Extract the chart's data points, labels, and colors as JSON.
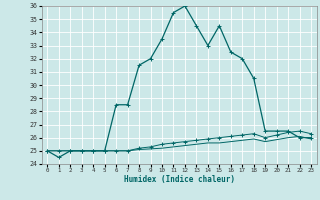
{
  "xlabel": "Humidex (Indice chaleur)",
  "bg_color": "#cce8e8",
  "grid_color": "#b8d8d8",
  "line_color": "#006666",
  "xlim": [
    -0.5,
    23.5
  ],
  "ylim": [
    24,
    36
  ],
  "x_ticks": [
    0,
    1,
    2,
    3,
    4,
    5,
    6,
    7,
    8,
    9,
    10,
    11,
    12,
    13,
    14,
    15,
    16,
    17,
    18,
    19,
    20,
    21,
    22,
    23
  ],
  "y_ticks": [
    24,
    25,
    26,
    27,
    28,
    29,
    30,
    31,
    32,
    33,
    34,
    35,
    36
  ],
  "series": [
    {
      "x": [
        0,
        1,
        2,
        3,
        4,
        5,
        6,
        7,
        8,
        9,
        10,
        11,
        12,
        13,
        14,
        15,
        16,
        17,
        18,
        19,
        20,
        21,
        22,
        23
      ],
      "y": [
        25.0,
        24.5,
        25.0,
        25.0,
        25.0,
        25.0,
        28.5,
        28.5,
        31.5,
        32.0,
        33.5,
        35.5,
        36.0,
        34.5,
        33.0,
        34.5,
        32.5,
        32.0,
        30.5,
        26.5,
        26.5,
        26.5,
        26.0,
        26.0
      ],
      "marker": "+",
      "lw": 0.9,
      "ms": 3.0
    },
    {
      "x": [
        0,
        1,
        2,
        3,
        4,
        5,
        6,
        7,
        8,
        9,
        10,
        11,
        12,
        13,
        14,
        15,
        16,
        17,
        18,
        19,
        20,
        21,
        22,
        23
      ],
      "y": [
        25.0,
        25.0,
        25.0,
        25.0,
        25.0,
        25.0,
        25.0,
        25.0,
        25.2,
        25.3,
        25.5,
        25.6,
        25.7,
        25.8,
        25.9,
        26.0,
        26.1,
        26.2,
        26.3,
        26.0,
        26.2,
        26.4,
        26.5,
        26.3
      ],
      "marker": "+",
      "lw": 0.7,
      "ms": 2.5
    },
    {
      "x": [
        0,
        1,
        2,
        3,
        4,
        5,
        6,
        7,
        8,
        9,
        10,
        11,
        12,
        13,
        14,
        15,
        16,
        17,
        18,
        19,
        20,
        21,
        22,
        23
      ],
      "y": [
        25.0,
        25.0,
        25.0,
        25.0,
        25.0,
        25.0,
        25.0,
        25.0,
        25.1,
        25.15,
        25.2,
        25.3,
        25.4,
        25.5,
        25.6,
        25.6,
        25.7,
        25.8,
        25.9,
        25.7,
        25.85,
        26.0,
        26.1,
        25.9
      ],
      "marker": null,
      "lw": 0.7,
      "ms": 0
    }
  ]
}
